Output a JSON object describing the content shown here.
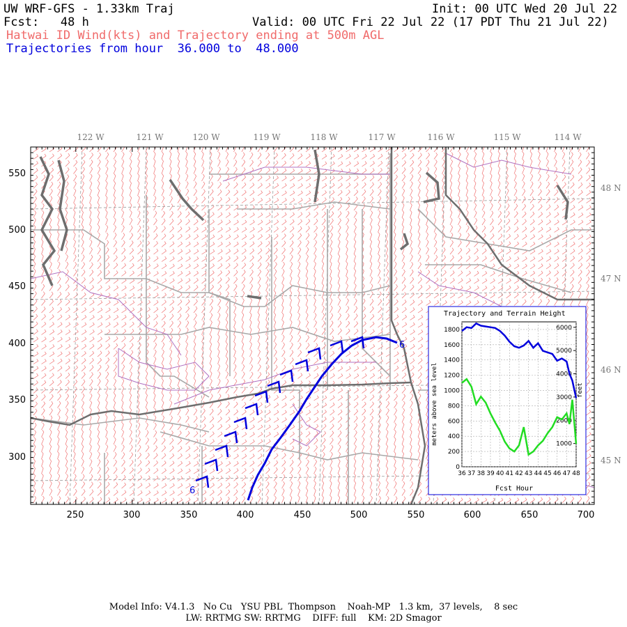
{
  "header": {
    "model_title": "UW WRF-GFS - 1.33km Traj",
    "init_time": "Init: 00 UTC Wed 20 Jul 22",
    "forecast": "Fcst:   48 h",
    "valid_time": "Valid: 00 UTC Fri 22 Jul 22 (17 PDT Thu 21 Jul 22)",
    "field_description": "Hatwai ID Wind(kts) and Trajectory ending at 500m AGL",
    "trajectory_hours": "Trajectories from hour  36.000 to  48.000"
  },
  "map": {
    "lon_labels": [
      "122 W",
      "121 W",
      "120 W",
      "119 W",
      "118 W",
      "117 W",
      "116 W",
      "115 W",
      "114 W"
    ],
    "lat_labels": [
      "48 N",
      "47 N",
      "46 N",
      "45 N"
    ],
    "x_ticks": [
      "250",
      "300",
      "350",
      "400",
      "450",
      "500",
      "550",
      "600",
      "650",
      "700"
    ],
    "y_ticks": [
      "300",
      "350",
      "400",
      "450",
      "500",
      "550"
    ],
    "trajectory_start_label": "6",
    "trajectory_end_label": "6",
    "colors": {
      "wind_barbs": "#f07070",
      "trajectory": "#0000dd",
      "state_borders": "#707070",
      "county_lines": "#a0a0a0",
      "rivers": "#b070c0"
    }
  },
  "inset": {
    "title": "Trajectory and Terrain Height",
    "left_axis_label": "meters above sea level",
    "right_axis_label": "feet",
    "x_axis_label": "Fcst Hour",
    "left_ticks": [
      "0",
      "200",
      "400",
      "600",
      "800",
      "1000",
      "1200",
      "1400",
      "1600",
      "1800"
    ],
    "right_ticks": [
      "1000",
      "2000",
      "3000",
      "4000",
      "5000",
      "6000"
    ],
    "x_ticks": [
      "36",
      "37",
      "38",
      "39",
      "40",
      "41",
      "42",
      "43",
      "44",
      "45",
      "46",
      "47",
      "48"
    ]
  },
  "chart_data": {
    "type": "line",
    "title": "Trajectory and Terrain Height",
    "xlabel": "Fcst Hour",
    "ylabel": "meters above sea level",
    "y2label": "feet",
    "xlim": [
      36,
      48
    ],
    "ylim": [
      0,
      1900
    ],
    "grid": true,
    "series": [
      {
        "color": "#0000dd",
        "x": [
          36,
          36.5,
          37,
          37.5,
          38,
          38.5,
          39,
          39.5,
          40,
          40.5,
          41,
          41.5,
          42,
          42.5,
          43,
          43.5,
          44,
          44.5,
          45,
          45.5,
          46,
          46.5,
          47,
          47.3,
          47.6,
          48
        ],
        "values": [
          1780,
          1830,
          1820,
          1880,
          1850,
          1840,
          1830,
          1820,
          1780,
          1720,
          1640,
          1580,
          1560,
          1590,
          1650,
          1560,
          1620,
          1520,
          1500,
          1480,
          1390,
          1420,
          1380,
          1220,
          1130,
          900
        ]
      },
      {
        "color": "#22dd22",
        "x": [
          36,
          36.5,
          37,
          37.5,
          38,
          38.5,
          39,
          39.5,
          40,
          40.5,
          41,
          41.5,
          42,
          42.5,
          43,
          43.5,
          44,
          44.5,
          45,
          45.5,
          46,
          46.5,
          47,
          47.3,
          47.6,
          48
        ],
        "values": [
          1100,
          1150,
          1050,
          820,
          920,
          840,
          700,
          580,
          470,
          330,
          240,
          200,
          280,
          520,
          160,
          200,
          280,
          340,
          440,
          520,
          650,
          620,
          700,
          560,
          880,
          300
        ]
      }
    ]
  },
  "footer": {
    "line1": "Model Info: V4.1.3   No Cu   YSU PBL  Thompson    Noah-MP   1.3 km,  37 levels,    8 sec",
    "line2": "LW: RRTMG SW: RRTMG    DIFF: full    KM: 2D Smagor"
  }
}
